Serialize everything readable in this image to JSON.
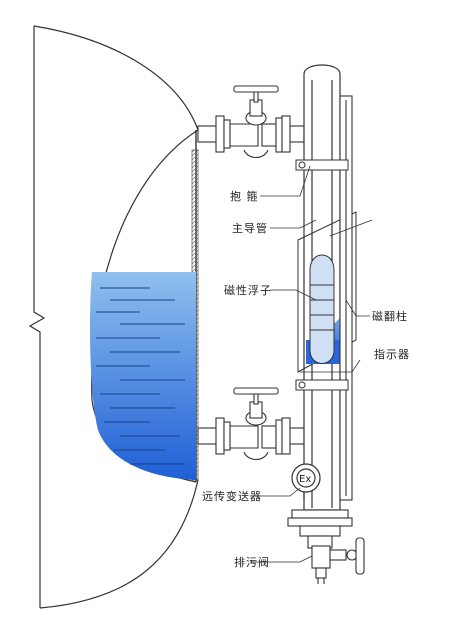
{
  "labels": {
    "clamp": "抱 箍",
    "main_tube": "主导管",
    "float": "磁性浮子",
    "flip_column": "磁翻柱",
    "indicator": "指示器",
    "transmitter": "远传变送器",
    "drain_valve": "排污阀",
    "ex_mark": "Ex"
  },
  "colors": {
    "liquid_top": "#8fc0ee",
    "liquid_bottom": "#1f5fd6",
    "line": "#333333"
  }
}
